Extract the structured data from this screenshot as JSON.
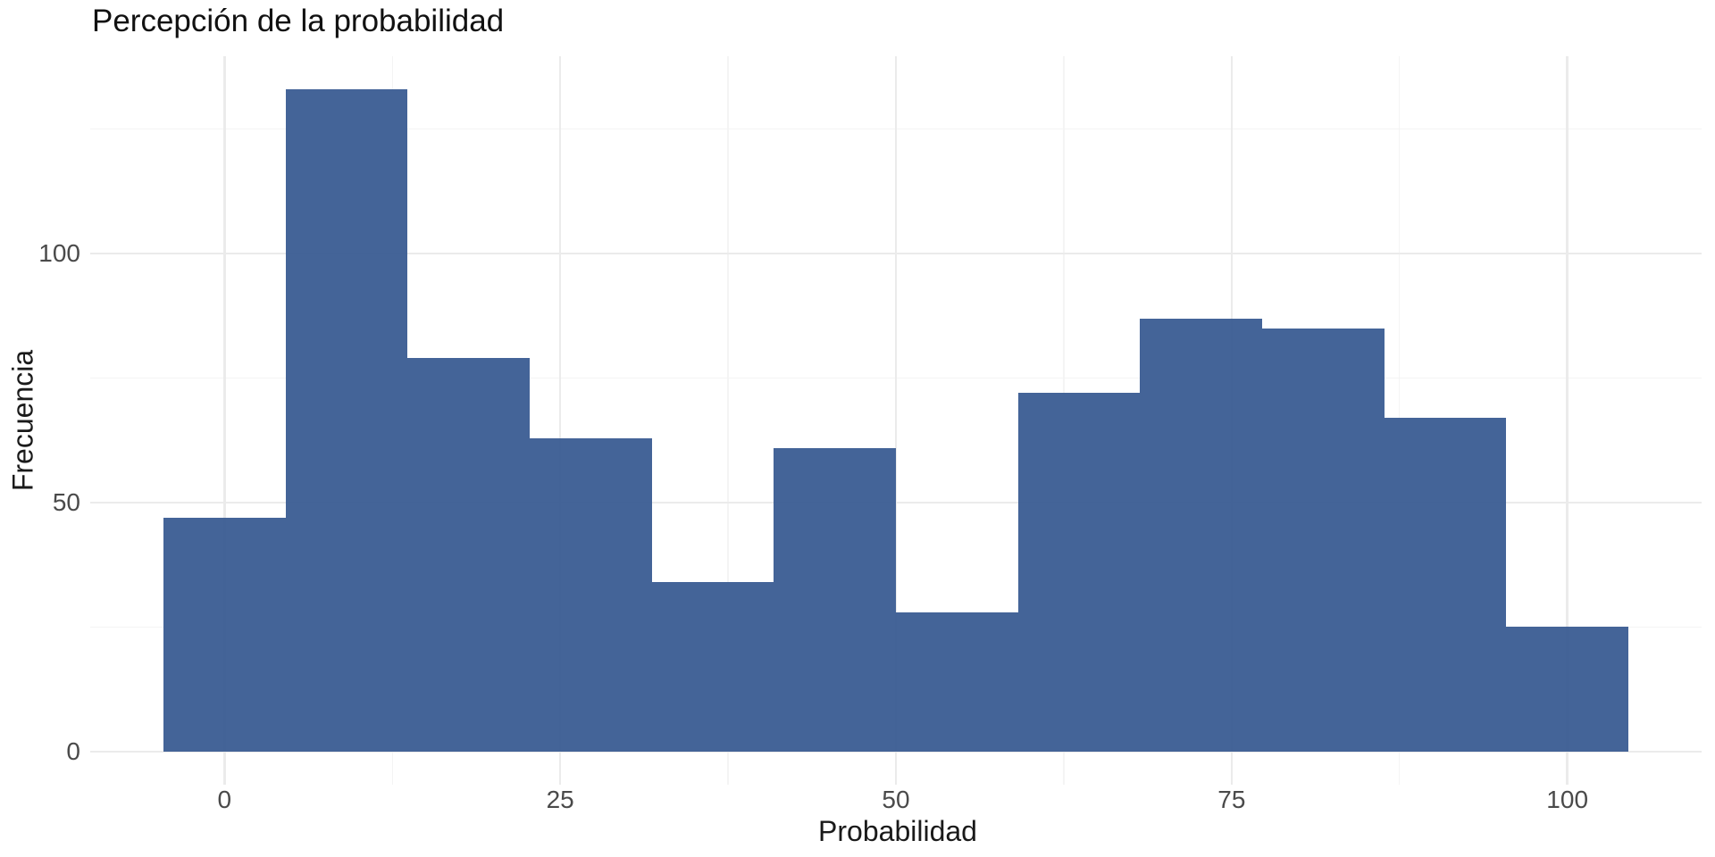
{
  "chart_data": {
    "type": "bar",
    "subtype": "histogram",
    "title": "Percepción de la probabilidad",
    "xlabel": "Probabilidad",
    "ylabel": "Frecuencia",
    "bin_start": -4.545,
    "bin_width": 9.0909,
    "bin_centers": [
      0,
      9.1,
      18.2,
      27.3,
      36.4,
      45.5,
      54.5,
      63.6,
      72.7,
      81.8,
      90.9,
      100
    ],
    "values": [
      47,
      133,
      79,
      63,
      34,
      61,
      28,
      72,
      87,
      85,
      67,
      25
    ],
    "x_domain": [
      -10,
      110
    ],
    "y_domain": [
      -6.65,
      139.65
    ],
    "x_ticks": [
      0,
      25,
      50,
      75,
      100
    ],
    "x_minor_ticks": [
      12.5,
      37.5,
      62.5,
      87.5
    ],
    "y_ticks": [
      0,
      50,
      100
    ],
    "y_minor_ticks": [
      25,
      75,
      125
    ],
    "bar_color": "#42639a",
    "grid_major_color": "#ebebeb",
    "grid_minor_color": "#f4f4f4",
    "background_color": "#ffffff",
    "grid": true,
    "legend_position": "none"
  }
}
